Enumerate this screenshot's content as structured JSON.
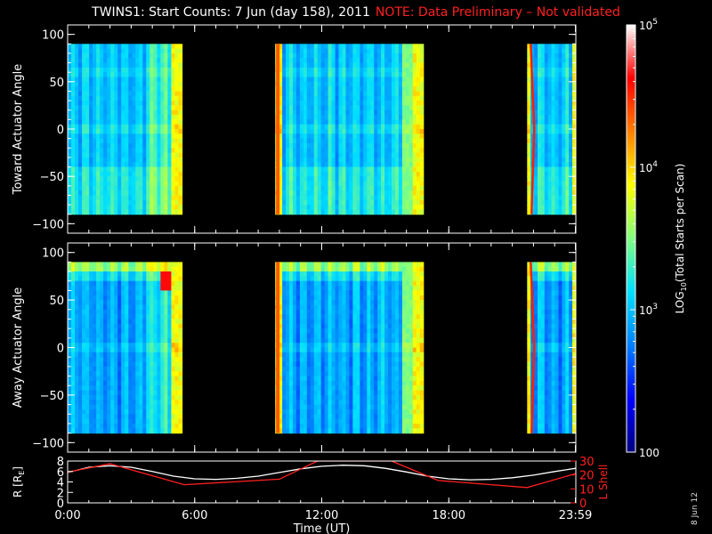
{
  "title": {
    "main": "TWINS1: Start Counts:  7 Jun (day 158), 2011",
    "note": "NOTE: Data Preliminary – Not validated"
  },
  "stamp": "8 Jun 12",
  "colors": {
    "note": "#ff2020",
    "background": "#000000",
    "axis": "#ffffff",
    "ephem_r": "#ffffff",
    "ephem_l": "#ff2020"
  },
  "chart_data": [
    {
      "type": "heatmap",
      "panel": "top",
      "ylabel": "Toward Actuator Angle",
      "ylim": [
        -110,
        110
      ],
      "yticks": [
        100,
        50,
        0,
        -50,
        -100
      ],
      "angle_range": [
        -90,
        90
      ],
      "xlim": [
        0,
        24
      ],
      "data_intervals_hours": [
        [
          0.0,
          5.4
        ],
        [
          9.8,
          16.8
        ],
        [
          21.7,
          24.0
        ]
      ],
      "colorbar_ref": "shared"
    },
    {
      "type": "heatmap",
      "panel": "middle",
      "ylabel": "Away Actuator Angle",
      "ylim": [
        -110,
        110
      ],
      "yticks": [
        100,
        50,
        0,
        -50,
        -100
      ],
      "angle_range": [
        -90,
        90
      ],
      "xlim": [
        0,
        24
      ],
      "data_intervals_hours": [
        [
          0.0,
          5.4
        ],
        [
          9.8,
          16.8
        ],
        [
          21.7,
          24.0
        ]
      ],
      "colorbar_ref": "shared"
    },
    {
      "type": "line",
      "panel": "ephemeris",
      "xlabel": "Time (UT)",
      "xlim": [
        0,
        24
      ],
      "xtick_labels": [
        "0:00",
        "6:00",
        "12:00",
        "18:00",
        "23:59"
      ],
      "xtick_hours": [
        0,
        6,
        12,
        18,
        23.98
      ],
      "left_axis": {
        "label": "R [RE]",
        "label_main": "R [R",
        "label_sub": "E",
        "label_end": "]",
        "ylim": [
          0,
          8
        ],
        "yticks": [
          0,
          2,
          4,
          6,
          8
        ]
      },
      "right_axis": {
        "label": "L Shell",
        "ylim": [
          0,
          30
        ],
        "yticks": [
          0,
          10,
          20,
          30
        ]
      },
      "series": [
        {
          "axis": "left",
          "x": [
            0,
            1,
            2,
            3,
            4,
            5,
            6,
            7,
            8,
            9,
            10,
            11,
            12,
            13,
            14,
            15,
            16,
            17,
            18,
            19,
            20,
            21,
            22,
            23,
            24
          ],
          "values": [
            5.8,
            6.8,
            7.1,
            6.8,
            6.0,
            5.1,
            4.6,
            4.5,
            4.7,
            5.1,
            5.8,
            6.5,
            7.0,
            7.2,
            7.1,
            6.6,
            5.9,
            5.1,
            4.6,
            4.4,
            4.5,
            4.8,
            5.3,
            6.0,
            6.6
          ]
        },
        {
          "axis": "right",
          "x": [
            0,
            2,
            5.5,
            10,
            11.8,
            15.3,
            17.5,
            21.7,
            24
          ],
          "values": [
            22,
            28,
            13,
            17,
            30,
            30,
            16,
            11,
            21
          ]
        }
      ]
    },
    {
      "type": "colorbar",
      "label_pre": "LOG",
      "label_sub": "10",
      "label_post": "(Total Starts per Scan)",
      "scale": "log",
      "range": [
        100,
        100000
      ],
      "tick_labels": [
        {
          "value": 100000,
          "base": "10",
          "exp": "5"
        },
        {
          "value": 10000,
          "base": "10",
          "exp": "4"
        },
        {
          "value": 1000,
          "base": "10",
          "exp": "3"
        },
        {
          "value": 100,
          "base": "100",
          "exp": ""
        }
      ],
      "colormap": [
        "#000080",
        "#0000ff",
        "#0080ff",
        "#00e0ff",
        "#80ff80",
        "#ffff00",
        "#ff8000",
        "#ff0000",
        "#ffffff"
      ]
    }
  ]
}
